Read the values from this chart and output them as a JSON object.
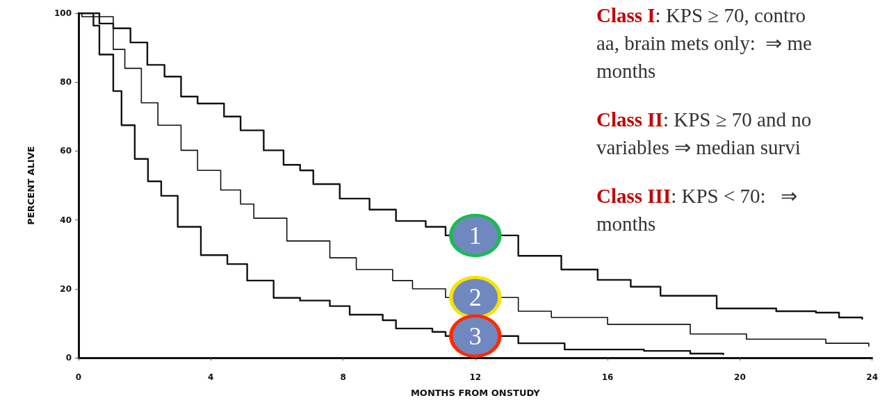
{
  "chart_data": {
    "type": "step",
    "xlabel": "MONTHS FROM ONSTUDY",
    "ylabel": "PERCENT ALIVE",
    "xlim": [
      0,
      24
    ],
    "xticks": [
      0,
      4,
      8,
      12,
      16,
      20,
      24
    ],
    "ylim": [
      0,
      100
    ],
    "yticks": [
      0,
      20,
      40,
      60,
      80,
      100
    ],
    "grid": false,
    "marker": "none",
    "line_style": "solid",
    "series": [
      {
        "name": "1",
        "color": "#111111",
        "x": [
          0,
          0.63,
          1.05,
          1.57,
          2.08,
          2.6,
          3.1,
          3.6,
          4.4,
          4.9,
          5.6,
          6.2,
          6.7,
          7.1,
          7.9,
          8.8,
          9.6,
          10.5,
          11.1,
          12,
          13.3,
          14.6,
          15.7,
          16.7,
          17.6,
          19.3,
          21.1,
          22.3,
          23,
          23.7
        ],
        "values": [
          100,
          97,
          95.6,
          91.5,
          85,
          81.6,
          75.8,
          73.8,
          70,
          66,
          60.2,
          56,
          54.4,
          50.4,
          46.2,
          43,
          39.7,
          38,
          35.5,
          null,
          29.6,
          25.6,
          22.6,
          20.6,
          18,
          14.3,
          13.5,
          13.1,
          11.7,
          11.3
        ]
      },
      {
        "name": "2",
        "color": "#111111",
        "x": [
          0,
          0.1,
          1.05,
          1.4,
          1.9,
          2.4,
          3.1,
          3.6,
          4.3,
          4.9,
          5.3,
          6.3,
          7.6,
          8.4,
          9.5,
          10.1,
          11.1,
          11.35,
          13.3,
          14.3,
          16,
          18.5,
          20.2,
          22.6,
          23.9
        ],
        "values": [
          100,
          99,
          89.5,
          84,
          74,
          67.5,
          60.2,
          54.4,
          48.7,
          44.6,
          40.5,
          33.9,
          29,
          25.6,
          22.4,
          20,
          17.5,
          null,
          13.5,
          11.7,
          9.7,
          6.9,
          5.4,
          4.2,
          3.4
        ]
      },
      {
        "name": "3",
        "color": "#111111",
        "x": [
          0,
          0.45,
          0.63,
          1.05,
          1.3,
          1.7,
          2.1,
          2.5,
          3.0,
          3.7,
          4.5,
          5.1,
          5.9,
          6.7,
          7.6,
          8.2,
          9.2,
          9.6,
          10.7,
          11.1,
          13.3,
          14.3,
          14.7,
          17.1,
          18.5,
          19.5
        ],
        "values": [
          100,
          96.4,
          88,
          77.4,
          67.5,
          57.7,
          51.2,
          47,
          38,
          29.8,
          27.2,
          22.4,
          17.4,
          16.6,
          15,
          12.5,
          10.9,
          8.5,
          7.5,
          6.3,
          4.2,
          4.2,
          2.4,
          2,
          1.2,
          1
        ]
      }
    ],
    "annotations": [
      "Class I: KPS ≥ 70, contro\naa, brain mets only:  ⇒ me\nmonths",
      "Class II: KPS ≥ 70 and no\nvariables ⇒ median survi",
      "Class III: KPS < 70:   ⇒\nmonths"
    ]
  }
}
